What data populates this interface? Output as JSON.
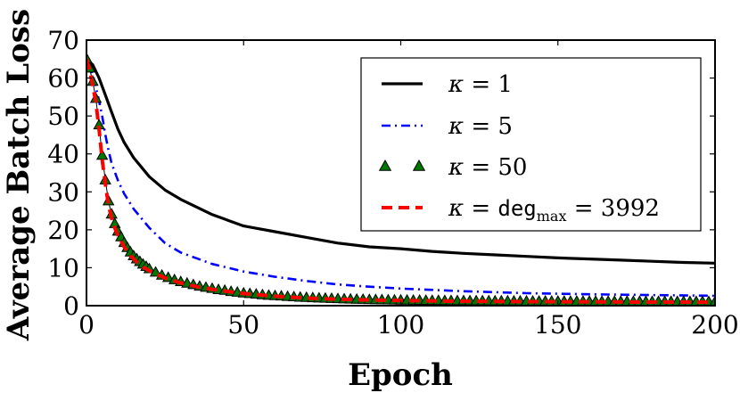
{
  "chart_data": {
    "type": "line",
    "title": "",
    "xlabel": "Epoch",
    "ylabel": "Average Batch Loss",
    "xlim": [
      0,
      200
    ],
    "ylim": [
      0,
      70
    ],
    "xticks": [
      "0",
      "50",
      "100",
      "150",
      "200"
    ],
    "yticks": [
      "0",
      "10",
      "20",
      "30",
      "40",
      "50",
      "60",
      "70"
    ],
    "legend_position": "top-right",
    "series": [
      {
        "name": "κ = 1",
        "label_var": "κ",
        "label_rest": " = 1",
        "color": "#000000",
        "style": "solid",
        "x": [
          0,
          2,
          4,
          6,
          8,
          10,
          12,
          15,
          18,
          20,
          25,
          30,
          35,
          40,
          45,
          50,
          60,
          70,
          80,
          90,
          100,
          110,
          120,
          130,
          140,
          150,
          160,
          170,
          180,
          190,
          200
        ],
        "y": [
          65,
          63.5,
          60,
          55.5,
          51,
          46.5,
          43,
          39,
          36,
          34,
          30.5,
          28,
          26,
          24,
          22.5,
          21,
          19.5,
          18,
          16.5,
          15.5,
          15,
          14.3,
          13.8,
          13.4,
          13,
          12.6,
          12.3,
          12,
          11.7,
          11.4,
          11.2
        ]
      },
      {
        "name": "κ = 5",
        "label_var": "κ",
        "label_rest": " = 5",
        "color": "#0000ff",
        "style": "dashdot",
        "x": [
          0,
          2,
          4,
          5,
          6,
          7,
          8,
          10,
          12,
          15,
          20,
          25,
          30,
          40,
          50,
          60,
          70,
          80,
          90,
          100,
          120,
          140,
          160,
          180,
          200
        ],
        "y": [
          65,
          61,
          54,
          50,
          45,
          41,
          37.5,
          33,
          29.5,
          25.5,
          20.5,
          16.5,
          14,
          11,
          9,
          7.6,
          6.5,
          5.6,
          5,
          4.5,
          3.8,
          3.3,
          3,
          2.8,
          2.6
        ]
      },
      {
        "name": "κ = 50",
        "label_var": "κ",
        "label_rest": " = 50",
        "color": "#007700",
        "style": "triangles",
        "x": [
          0,
          1,
          2,
          3,
          4,
          5,
          6,
          7,
          8,
          9,
          10,
          11,
          12,
          13,
          14,
          15,
          16,
          17,
          18,
          19,
          20,
          22,
          24,
          26,
          28,
          30,
          32,
          34,
          36,
          38,
          40,
          42,
          44,
          46,
          48,
          50,
          52,
          54,
          56,
          58,
          60,
          62,
          64,
          66,
          68,
          70,
          72,
          74,
          76,
          78,
          80,
          82,
          84,
          86,
          88,
          90,
          92,
          94,
          96,
          98,
          100,
          102,
          104,
          106,
          108,
          110,
          112,
          114,
          116,
          118,
          120,
          122,
          124,
          126,
          128,
          130,
          132,
          134,
          136,
          138,
          140,
          142,
          144,
          146,
          148,
          150,
          152,
          154,
          156,
          158,
          160,
          162,
          164,
          166,
          168,
          170,
          172,
          174,
          176,
          178,
          180,
          182,
          184,
          186,
          188,
          190,
          192,
          194,
          196,
          198,
          200
        ],
        "y": [
          65,
          62.5,
          59,
          54.5,
          47.5,
          39.5,
          33,
          27.5,
          24,
          21.5,
          19.5,
          18,
          16.5,
          15.2,
          14,
          13,
          12.2,
          11.5,
          10.8,
          10.2,
          9.6,
          8.7,
          7.9,
          7.3,
          6.7,
          6.2,
          5.8,
          5.4,
          5,
          4.7,
          4.4,
          4.1,
          3.9,
          3.6,
          3.4,
          3.2,
          3.05,
          2.9,
          2.75,
          2.6,
          2.5,
          2.4,
          2.3,
          2.2,
          2.1,
          2.02,
          1.95,
          1.88,
          1.82,
          1.76,
          1.7,
          1.65,
          1.6,
          1.56,
          1.52,
          1.48,
          1.45,
          1.42,
          1.39,
          1.36,
          1.34,
          1.32,
          1.3,
          1.28,
          1.26,
          1.24,
          1.22,
          1.2,
          1.19,
          1.18,
          1.17,
          1.16,
          1.15,
          1.14,
          1.13,
          1.12,
          1.11,
          1.1,
          1.09,
          1.08,
          1.07,
          1.06,
          1.05,
          1.05,
          1.04,
          1.04,
          1.03,
          1.03,
          1.02,
          1.02,
          1.01,
          1.01,
          1.0,
          1.0,
          1.0,
          0.99,
          0.99,
          0.98,
          0.98,
          0.97,
          0.97,
          0.97,
          0.96,
          0.96,
          0.96,
          0.95,
          0.95,
          0.95,
          0.95,
          0.94,
          0.94
        ]
      },
      {
        "name": "κ = deg_max = 3992",
        "label_var": "κ",
        "label_rest": " = ",
        "label_mono": "deg",
        "label_sub": "max",
        "label_tail": " = 3992",
        "color": "#ff0000",
        "style": "dashed",
        "x": [
          0,
          1,
          2,
          3,
          4,
          5,
          6,
          7,
          8,
          9,
          10,
          12,
          14,
          16,
          18,
          20,
          25,
          30,
          35,
          40,
          50,
          60,
          70,
          80,
          90,
          100,
          120,
          140,
          160,
          180,
          200
        ],
        "y": [
          65,
          62,
          58,
          53.5,
          46.5,
          38.5,
          32,
          26.5,
          23,
          20.5,
          18.5,
          15.5,
          13.2,
          11.5,
          10.2,
          9.2,
          7.3,
          6,
          5,
          4.3,
          3.2,
          2.5,
          2,
          1.7,
          1.5,
          1.35,
          1.15,
          1.05,
          1.0,
          0.95,
          0.92
        ]
      }
    ]
  }
}
